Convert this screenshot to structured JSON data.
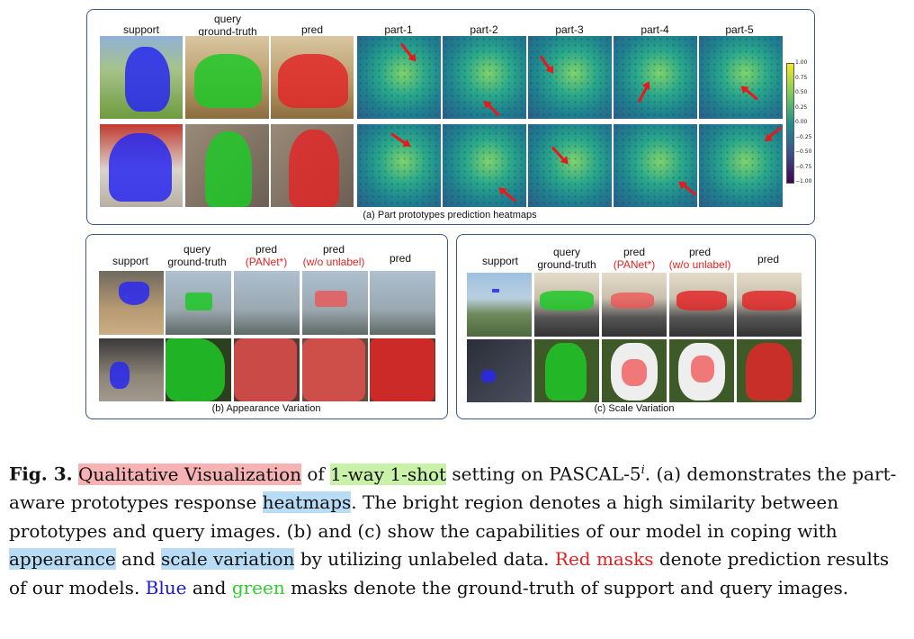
{
  "panel_a": {
    "headers": [
      "support",
      "query ground-truth",
      "pred",
      "part-1",
      "part-2",
      "part-3",
      "part-4",
      "part-5"
    ],
    "query_line1": "query",
    "query_line2": "ground-truth",
    "caption": "(a) Part prototypes prediction heatmaps",
    "colorbar_ticks": [
      "1.00",
      "0.75",
      "0.50",
      "0.25",
      "0.00",
      "−0.25",
      "−0.50",
      "−0.75",
      "−1.00"
    ]
  },
  "panel_b": {
    "support": "support",
    "query_line1": "query",
    "query_line2": "ground-truth",
    "pred": "pred",
    "panet": "(PANet*)",
    "wo_unlabel": "(w/o unlabel)",
    "caption": "(b) Appearance Variation"
  },
  "panel_c": {
    "support": "support",
    "query_line1": "query",
    "query_line2": "ground-truth",
    "pred": "pred",
    "panet": "(PANet*)",
    "wo_unlabel": "(w/o unlabel)",
    "caption": "(c) Scale Variation"
  },
  "figure_caption": {
    "label": "Fig. 3.",
    "hl1": "Qualitative Visualization",
    "t1": " of ",
    "hl2": "1-way 1-shot",
    "t2": " setting on PASCAL-5",
    "sup": "i",
    "t3": ". (a) demonstrates the part-aware prototypes response ",
    "hl3": "heatmaps",
    "t4": ". The bright region denotes a high similarity between prototypes and query images. (b) and (c) show the capabilities of our model in coping with ",
    "hl4": "appearance",
    "t5": " and ",
    "hl5": "scale variation",
    "t6": " by utilizing unlabeled data. ",
    "red_text": "Red masks",
    "t7": " denote prediction results of our models. ",
    "blue_text": "Blue",
    "t8": " and ",
    "green_text": "green",
    "t9": " masks denote the ground-truth of support and query images."
  },
  "colors": {
    "border": "#3b5a8c",
    "red": "#e32222",
    "blue": "#1a1ad8",
    "green": "#2fcf2f"
  }
}
